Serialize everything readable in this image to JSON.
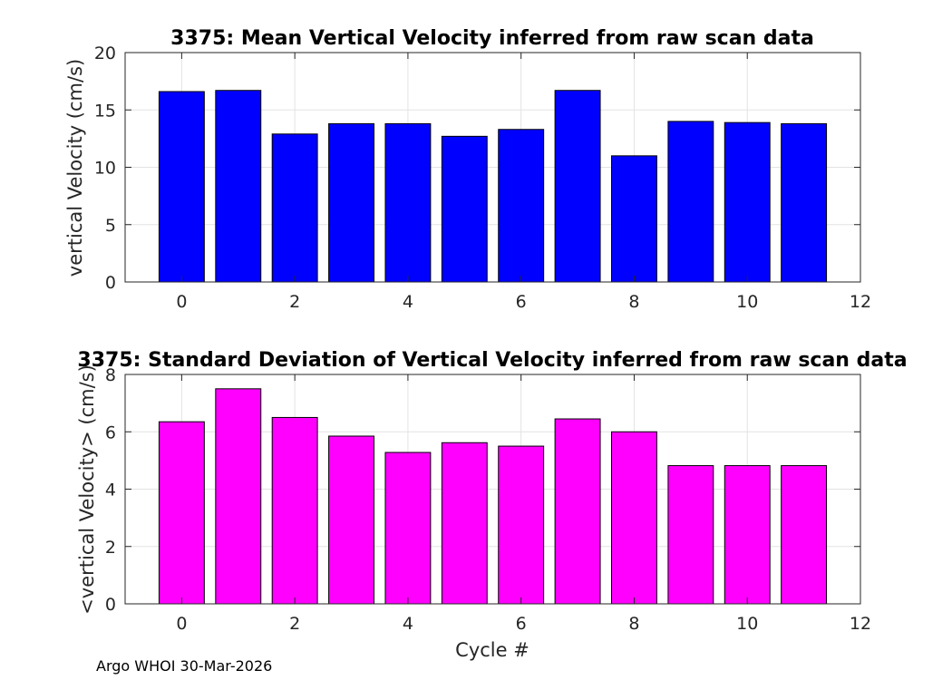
{
  "chart_data": [
    {
      "type": "bar",
      "title": "3375: Mean Vertical Velocity inferred from raw scan data",
      "xlabel": "",
      "ylabel": "vertical Velocity (cm/s)",
      "x": [
        0,
        1,
        2,
        3,
        4,
        5,
        6,
        7,
        8,
        9,
        10,
        11
      ],
      "values": [
        16.6,
        16.7,
        12.9,
        13.8,
        13.8,
        12.7,
        13.3,
        16.7,
        11.0,
        14.0,
        13.9,
        13.8
      ],
      "xlim": [
        -1,
        12
      ],
      "ylim": [
        0,
        20
      ],
      "xticks": [
        "0",
        "2",
        "4",
        "6",
        "8",
        "10",
        "12"
      ],
      "yticks": [
        "0",
        "5",
        "10",
        "15",
        "20"
      ],
      "color": "#0000ff",
      "grid": true
    },
    {
      "type": "bar",
      "title": "3375: Standard Deviation of Vertical Velocity inferred from raw scan data",
      "xlabel": "Cycle #",
      "ylabel": "<vertical Velocity> (cm/s)",
      "x": [
        0,
        1,
        2,
        3,
        4,
        5,
        6,
        7,
        8,
        9,
        10,
        11
      ],
      "values": [
        6.35,
        7.5,
        6.5,
        5.85,
        5.28,
        5.62,
        5.5,
        6.45,
        6.0,
        4.82,
        4.82,
        4.82
      ],
      "xlim": [
        -1,
        12
      ],
      "ylim": [
        0,
        8
      ],
      "xticks": [
        "0",
        "2",
        "4",
        "6",
        "8",
        "10",
        "12"
      ],
      "yticks": [
        "0",
        "2",
        "4",
        "6",
        "8"
      ],
      "color": "#ff00ff",
      "grid": true
    }
  ],
  "footer": "Argo WHOI 30-Mar-2026"
}
